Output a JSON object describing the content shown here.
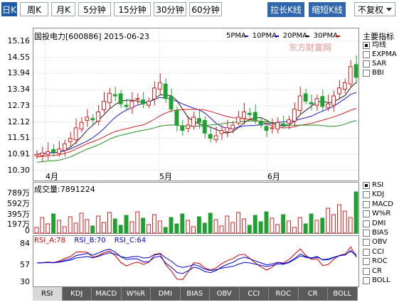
{
  "toolbar": {
    "periods": [
      {
        "label": "日K",
        "active": true
      },
      {
        "label": "周K",
        "active": false
      },
      {
        "label": "月K",
        "active": false
      },
      {
        "label": "5分钟",
        "active": false
      },
      {
        "label": "15分钟",
        "active": false
      },
      {
        "label": "30分钟",
        "active": false
      },
      {
        "label": "60分钟",
        "active": false
      }
    ],
    "stretch_label": "拉长K线",
    "shrink_label": "缩短K线",
    "adjust_label": "不复权"
  },
  "main_chart": {
    "stock_label": "国投电力[600886] 2015-06-23",
    "legend": [
      {
        "label": "5PMA",
        "color": "#1a1aa8"
      },
      {
        "label": "10PMA",
        "color": "#0000cc"
      },
      {
        "label": "20PMA",
        "color": "#000000"
      },
      {
        "label": "30PMA",
        "color": "#cc0000"
      }
    ],
    "watermark": "东方财富网",
    "y_ticks": [
      "15.16",
      "14.55",
      "13.94",
      "13.34",
      "12.73",
      "12.12",
      "11.51",
      "10.91",
      "10.30"
    ],
    "month_labels": [
      "4月",
      "5月",
      "6月"
    ],
    "colors": {
      "up": "#d42020",
      "down": "#20a030",
      "ma5": "#1a1a1a",
      "ma10": "#1a1acc",
      "ma20": "#cc2020",
      "ma30": "#209020"
    }
  },
  "indicator_panel": {
    "title": "主要指标",
    "items": [
      {
        "label": "均线",
        "checked": true
      },
      {
        "label": "EXPMA",
        "checked": false
      },
      {
        "label": "SAR",
        "checked": false
      },
      {
        "label": "BBI",
        "checked": false
      }
    ]
  },
  "volume_panel": {
    "label": "成交量:7891224",
    "y_ticks": [
      "789万",
      "592万",
      "395万",
      "197万",
      "0"
    ],
    "items": [
      {
        "label": "RSI",
        "checked": true
      },
      {
        "label": "KDJ",
        "checked": false
      },
      {
        "label": "MACD",
        "checked": false
      },
      {
        "label": "W%R",
        "checked": false
      },
      {
        "label": "DMI",
        "checked": false
      },
      {
        "label": "BIAS",
        "checked": false
      },
      {
        "label": "OBV",
        "checked": false
      },
      {
        "label": "CCI",
        "checked": false
      },
      {
        "label": "ROC",
        "checked": false
      },
      {
        "label": "CR",
        "checked": false
      },
      {
        "label": "BOLL",
        "checked": false
      }
    ]
  },
  "rsi_panel": {
    "legend": [
      {
        "label": "RSI_A:78",
        "color": "#cc0000"
      },
      {
        "label": "RSI_B:70",
        "color": "#0000cc"
      },
      {
        "label": "RSI_C:64",
        "color": "#0000cc"
      }
    ],
    "y_ticks": [
      "84",
      "57",
      "30"
    ]
  },
  "bottom_tabs": [
    {
      "label": "RSI",
      "active": true
    },
    {
      "label": "KDJ",
      "active": false
    },
    {
      "label": "MACD",
      "active": false
    },
    {
      "label": "W%R",
      "active": false
    },
    {
      "label": "DMI",
      "active": false
    },
    {
      "label": "BIAS",
      "active": false
    },
    {
      "label": "OBV",
      "active": false
    },
    {
      "label": "CCI",
      "active": false
    },
    {
      "label": "ROC",
      "active": false
    },
    {
      "label": "CR",
      "active": false
    },
    {
      "label": "BOLL",
      "active": false
    }
  ]
}
